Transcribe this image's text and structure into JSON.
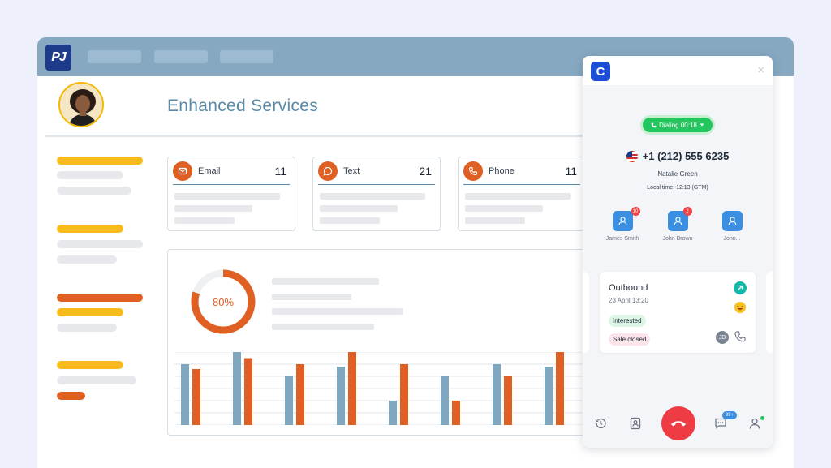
{
  "app": {
    "logo_text": "PJ",
    "page_title": "Enhanced Services"
  },
  "stats": [
    {
      "label": "Email",
      "value": "11"
    },
    {
      "label": "Text",
      "value": "21"
    },
    {
      "label": "Phone",
      "value": "11"
    }
  ],
  "chart": {
    "donut_label": "80%",
    "donut_fraction": 0.8,
    "bar_pairs": [
      {
        "blue": 5,
        "orange": 4.6
      },
      {
        "blue": 6,
        "orange": 5.5
      },
      {
        "blue": 4,
        "orange": 5
      },
      {
        "blue": 4.8,
        "orange": 6
      },
      {
        "blue": 2,
        "orange": 5
      },
      {
        "blue": 4,
        "orange": 2
      },
      {
        "blue": 5,
        "orange": 4
      },
      {
        "blue": 4.8,
        "orange": 6
      }
    ],
    "y_max": 6,
    "colors": {
      "blue": "#7fa7c0",
      "orange": "#e05f22"
    }
  },
  "widget": {
    "logo_text": "C",
    "close_label": "×",
    "dialing_label": "Dialing 00:18",
    "phone_number": "+1 (212) 555 6235",
    "contact_name": "Natalie Green",
    "local_time_label": "Local time:",
    "local_time_value": "12:13 (GTM)",
    "contacts": [
      {
        "name": "James Smith",
        "badge": "10"
      },
      {
        "name": "John Brown",
        "badge": "2"
      },
      {
        "name": "John...",
        "badge": ""
      }
    ],
    "call_card": {
      "direction": "Outbound",
      "date": "23 April 13:20",
      "tags": [
        "Interested",
        "Sale closed"
      ],
      "agent_initials": "JD"
    },
    "messages_badge": "99+"
  },
  "colors": {
    "accent_blue": "#3b8fe0",
    "topbar": "#86a9c1",
    "orange": "#e05f22",
    "yellow": "#f8bb1c",
    "green": "#22c55e",
    "red": "#ef3b43"
  }
}
